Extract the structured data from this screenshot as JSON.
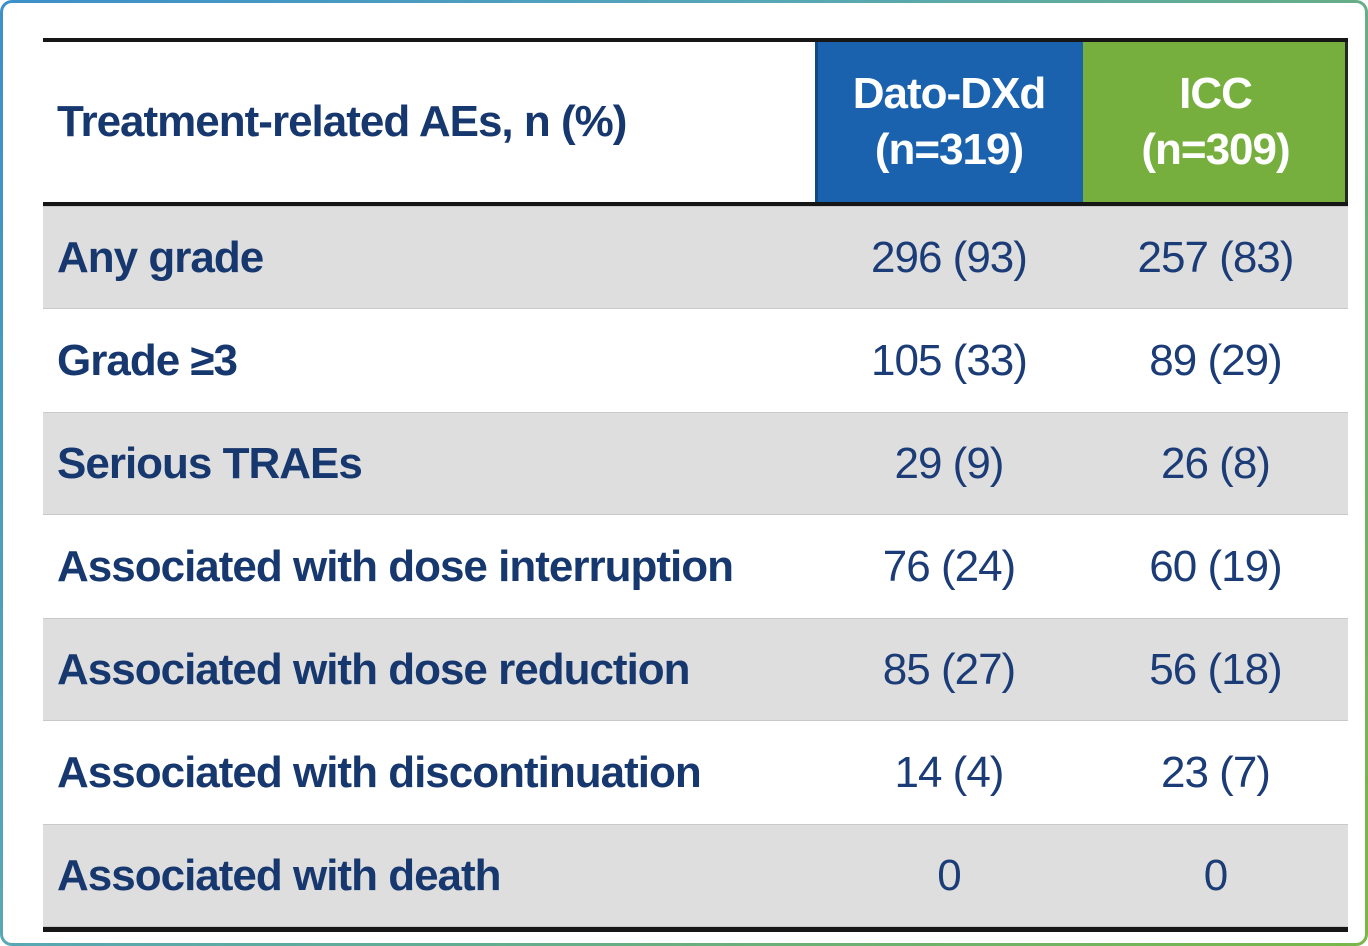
{
  "chart_data": {
    "type": "table",
    "title": "Treatment-related AEs, n (%)",
    "columns": [
      "Treatment-related AEs, n (%)",
      "Dato-DXd (n=319)",
      "ICC (n=309)"
    ],
    "rows": [
      {
        "label": "Any grade",
        "values": [
          "296 (93)",
          "257 (83)"
        ]
      },
      {
        "label": "Grade ≥3",
        "values": [
          "105 (33)",
          "89 (29)"
        ]
      },
      {
        "label": "Serious TRAEs",
        "values": [
          "29 (9)",
          "26 (8)"
        ]
      },
      {
        "label": "Associated with dose interruption",
        "values": [
          "76 (24)",
          "60 (19)"
        ]
      },
      {
        "label": "Associated with dose reduction",
        "values": [
          "85 (27)",
          "56 (18)"
        ]
      },
      {
        "label": "Associated with discontinuation",
        "values": [
          "14 (4)",
          "23 (7)"
        ]
      },
      {
        "label": "Associated with death",
        "values": [
          "0",
          "0"
        ]
      }
    ],
    "legend_position": "none",
    "grid": false
  },
  "table": {
    "header": {
      "label": "Treatment-related AEs, n (%)",
      "col_dato_name": "Dato-DXd",
      "col_dato_n": "(n=319)",
      "col_icc_name": "ICC",
      "col_icc_n": "(n=309)"
    },
    "rows": [
      {
        "label": "Any grade",
        "dato": "296 (93)",
        "icc": "257 (83)"
      },
      {
        "label": "Grade ≥3",
        "dato": "105 (33)",
        "icc": "89 (29)"
      },
      {
        "label": "Serious TRAEs",
        "dato": "29 (9)",
        "icc": "26 (8)"
      },
      {
        "label": "Associated with dose interruption",
        "dato": "76 (24)",
        "icc": "60 (19)"
      },
      {
        "label": "Associated with dose reduction",
        "dato": "85 (27)",
        "icc": "56 (18)"
      },
      {
        "label": "Associated with discontinuation",
        "dato": "14 (4)",
        "icc": "23 (7)"
      },
      {
        "label": "Associated with death",
        "dato": "0",
        "icc": "0"
      }
    ],
    "colors": {
      "dato_header_bg": "#1A62AE",
      "icc_header_bg": "#77AF3E",
      "header_text": "#FFFFFF",
      "label_text_navy": "#17376F",
      "value_text_navy": "#1B3C77",
      "stripe_row_bg": "#DEDEDE",
      "rule_black": "#161616"
    }
  }
}
